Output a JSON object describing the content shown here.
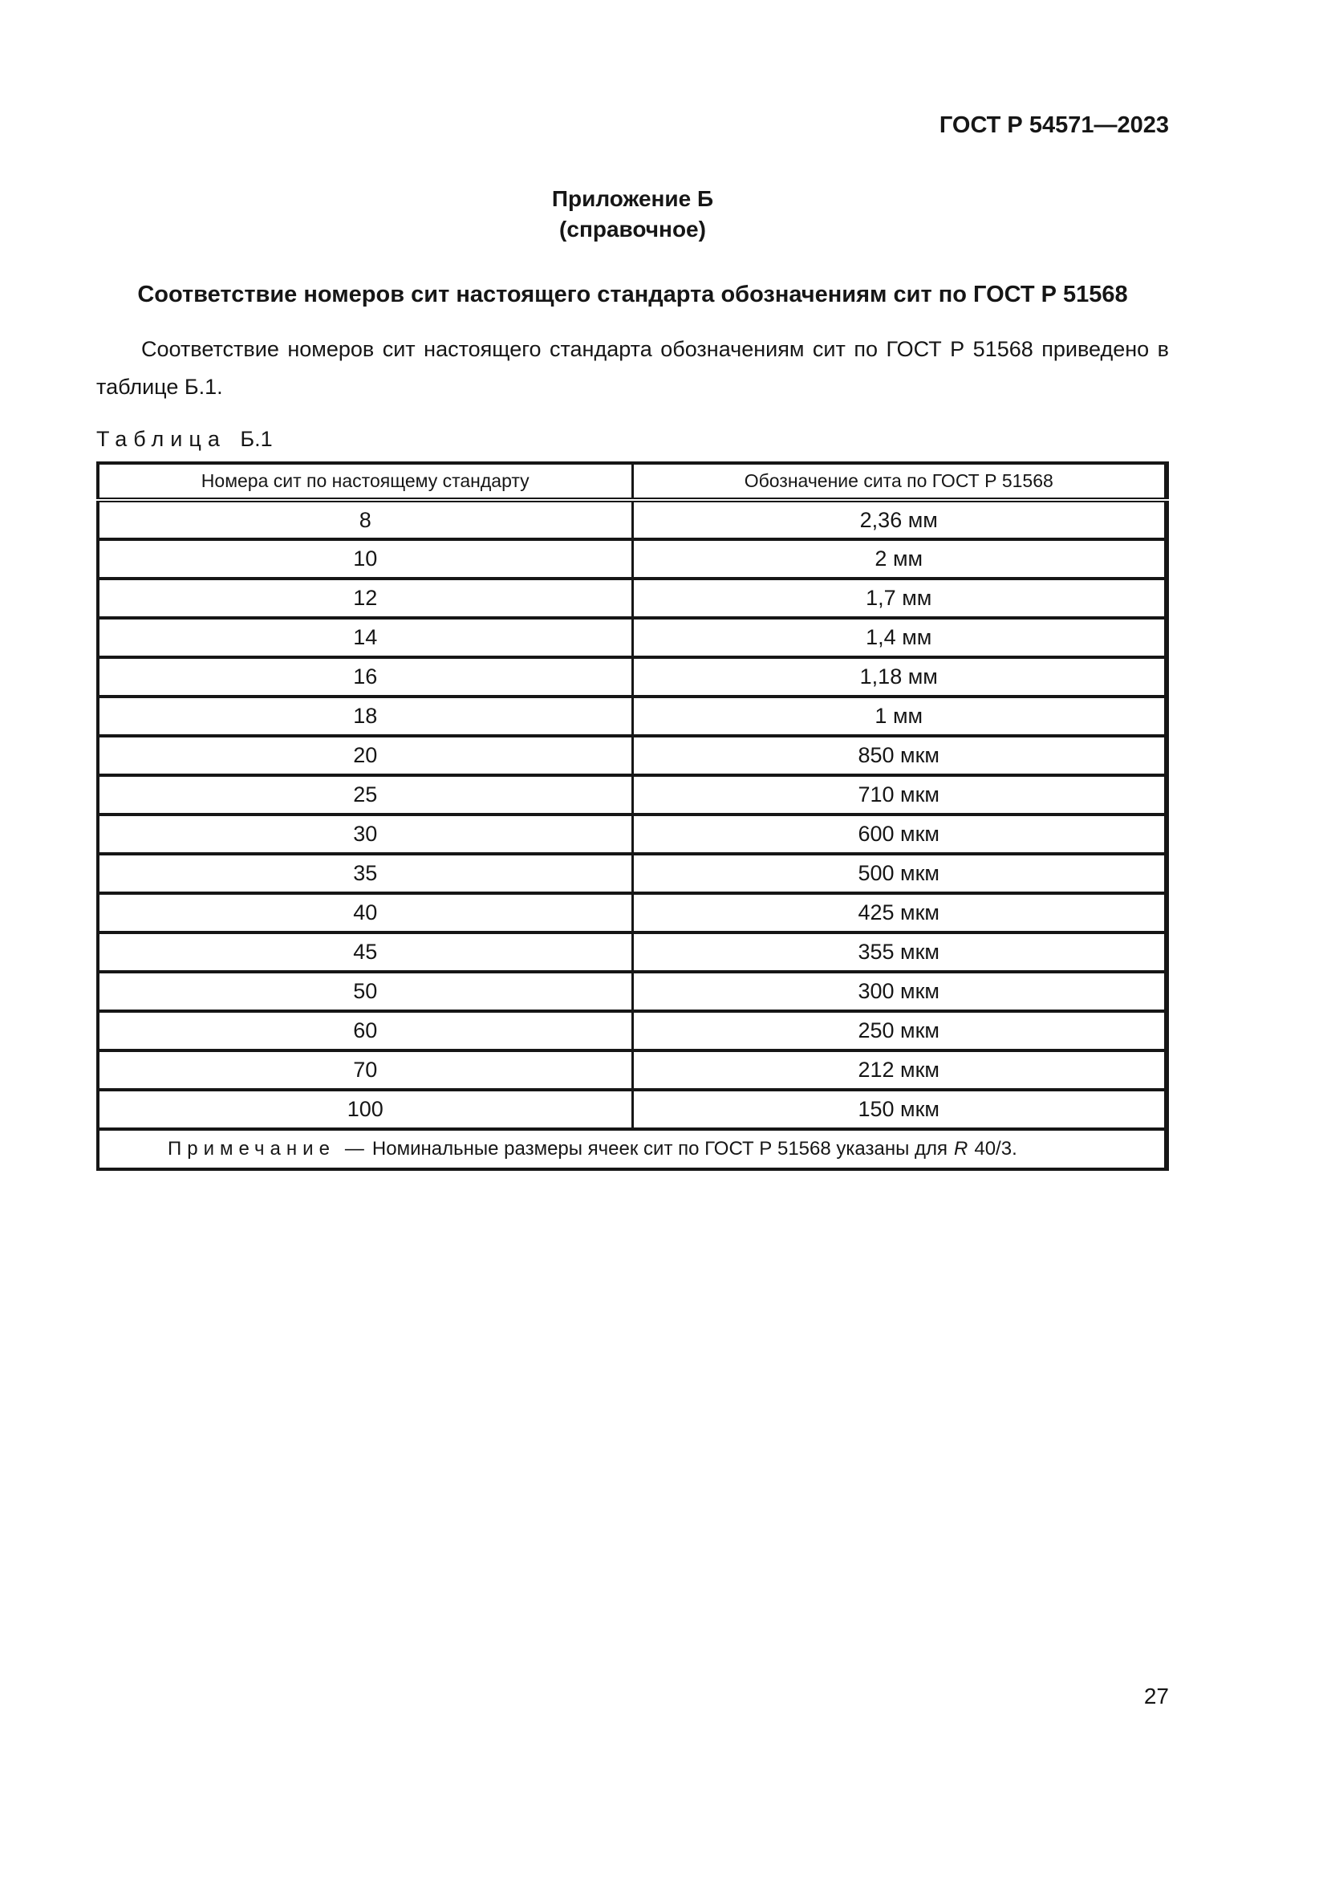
{
  "doc": {
    "header_right": "ГОСТ Р 54571—2023",
    "appendix": {
      "line1": "Приложение Б",
      "line2": "(справочное)"
    },
    "title": "Соответствие номеров сит настоящего стандарта обозначениям сит по ГОСТ Р 51568",
    "paragraph": "Соответствие номеров сит настоящего стандарта обозначениям сит по ГОСТ Р 51568 приведено в таблице Б.1.",
    "table_caption": {
      "label": "Таблица",
      "number": "Б.1"
    },
    "page_number": "27"
  },
  "table": {
    "col1_header": "Номера сит по настоящему стандарту",
    "col2_header": "Обозначение сита по ГОСТ Р 51568",
    "rows": [
      {
        "sieve": "8",
        "designation": "2,36 мм"
      },
      {
        "sieve": "10",
        "designation": "2 мм"
      },
      {
        "sieve": "12",
        "designation": "1,7 мм"
      },
      {
        "sieve": "14",
        "designation": "1,4 мм"
      },
      {
        "sieve": "16",
        "designation": "1,18 мм"
      },
      {
        "sieve": "18",
        "designation": "1 мм"
      },
      {
        "sieve": "20",
        "designation": "850 мкм"
      },
      {
        "sieve": "25",
        "designation": "710 мкм"
      },
      {
        "sieve": "30",
        "designation": "600 мкм"
      },
      {
        "sieve": "35",
        "designation": "500 мкм"
      },
      {
        "sieve": "40",
        "designation": "425 мкм"
      },
      {
        "sieve": "45",
        "designation": "355 мкм"
      },
      {
        "sieve": "50",
        "designation": "300 мкм"
      },
      {
        "sieve": "60",
        "designation": "250 мкм"
      },
      {
        "sieve": "70",
        "designation": "212 мкм"
      },
      {
        "sieve": "100",
        "designation": "150 мкм"
      }
    ],
    "note": {
      "label": "Примечание",
      "dash": "—",
      "text": "Номинальные размеры ячеек сит по ГОСТ Р 51568 указаны для",
      "r_italic": "R",
      "tail": "40/3."
    }
  }
}
